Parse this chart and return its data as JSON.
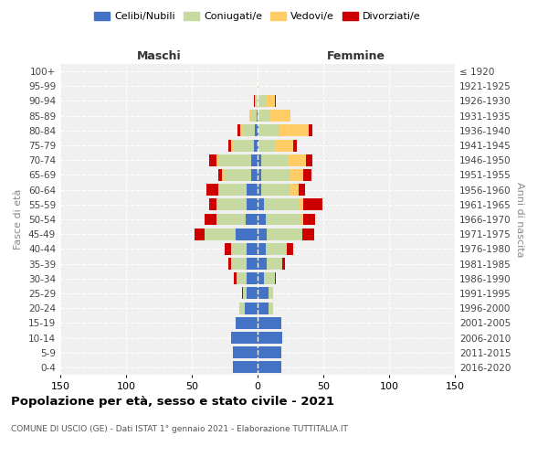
{
  "age_groups": [
    "0-4",
    "5-9",
    "10-14",
    "15-19",
    "20-24",
    "25-29",
    "30-34",
    "35-39",
    "40-44",
    "45-49",
    "50-54",
    "55-59",
    "60-64",
    "65-69",
    "70-74",
    "75-79",
    "80-84",
    "85-89",
    "90-94",
    "95-99",
    "100+"
  ],
  "birth_years": [
    "2016-2020",
    "2011-2015",
    "2006-2010",
    "2001-2005",
    "1996-2000",
    "1991-1995",
    "1986-1990",
    "1981-1985",
    "1976-1980",
    "1971-1975",
    "1966-1970",
    "1961-1965",
    "1956-1960",
    "1951-1955",
    "1946-1950",
    "1941-1945",
    "1936-1940",
    "1931-1935",
    "1926-1930",
    "1921-1925",
    "≤ 1920"
  ],
  "colors": {
    "celibe": "#4472C4",
    "coniugato": "#C6D9A0",
    "vedovo": "#FFCC66",
    "divorziato": "#CC0000"
  },
  "male": {
    "celibe": [
      19,
      19,
      20,
      17,
      10,
      8,
      8,
      8,
      8,
      17,
      9,
      8,
      8,
      5,
      5,
      3,
      2,
      1,
      0,
      0,
      0
    ],
    "coniugato": [
      0,
      0,
      0,
      0,
      4,
      3,
      8,
      12,
      12,
      23,
      22,
      23,
      22,
      20,
      25,
      15,
      9,
      4,
      2,
      0,
      0
    ],
    "vedovo": [
      0,
      0,
      0,
      0,
      0,
      0,
      0,
      0,
      0,
      0,
      0,
      0,
      0,
      2,
      1,
      2,
      2,
      1,
      0,
      0,
      0
    ],
    "divorziato": [
      0,
      0,
      0,
      0,
      0,
      1,
      2,
      2,
      5,
      8,
      9,
      6,
      9,
      3,
      6,
      2,
      2,
      0,
      1,
      0,
      0
    ]
  },
  "female": {
    "nubile": [
      18,
      18,
      19,
      18,
      8,
      8,
      5,
      7,
      6,
      7,
      6,
      5,
      3,
      3,
      3,
      1,
      1,
      0,
      0,
      0,
      0
    ],
    "coniugata": [
      0,
      0,
      0,
      0,
      4,
      4,
      8,
      12,
      16,
      27,
      27,
      27,
      22,
      22,
      20,
      12,
      16,
      10,
      6,
      1,
      0
    ],
    "vedova": [
      0,
      0,
      0,
      0,
      0,
      0,
      0,
      0,
      0,
      0,
      2,
      3,
      6,
      10,
      14,
      14,
      22,
      15,
      7,
      0,
      0
    ],
    "divorziata": [
      0,
      0,
      0,
      0,
      0,
      0,
      1,
      2,
      5,
      9,
      9,
      14,
      5,
      6,
      5,
      3,
      3,
      0,
      1,
      0,
      0
    ]
  },
  "xlim": 150,
  "title": "Popolazione per età, sesso e stato civile - 2021",
  "subtitle": "COMUNE DI USCIO (GE) - Dati ISTAT 1° gennaio 2021 - Elaborazione TUTTITALIA.IT",
  "xlabel_left": "Maschi",
  "xlabel_right": "Femmine",
  "ylabel_left": "Fasce di età",
  "ylabel_right": "Anni di nascita",
  "legend_labels": [
    "Celibi/Nubili",
    "Coniugati/e",
    "Vedovi/e",
    "Divorziati/e"
  ],
  "bg_color": "#f0f0f0"
}
